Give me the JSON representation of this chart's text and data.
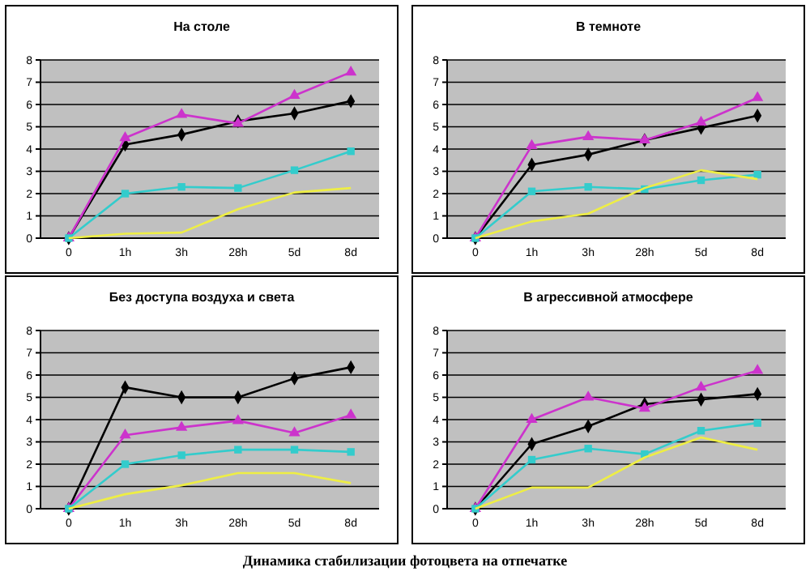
{
  "chart_data": [
    {
      "type": "line",
      "title": "На столе",
      "categories": [
        "0",
        "1h",
        "3h",
        "28h",
        "5d",
        "8d"
      ],
      "ylim": [
        0,
        8
      ],
      "yticks": [
        0,
        1,
        2,
        3,
        4,
        5,
        6,
        7,
        8
      ],
      "grid": "y",
      "series": [
        {
          "color": "#000000",
          "marker": "diamond",
          "values": [
            0,
            4.2,
            4.65,
            5.25,
            5.6,
            6.15
          ]
        },
        {
          "color": "#cc33cc",
          "marker": "triangle",
          "values": [
            0,
            4.5,
            5.55,
            5.15,
            6.4,
            7.45
          ]
        },
        {
          "color": "#33cccc",
          "marker": "square",
          "values": [
            0,
            2.0,
            2.3,
            2.25,
            3.05,
            3.9
          ]
        },
        {
          "color": "#eeee44",
          "marker": "none",
          "values": [
            0,
            0.2,
            0.25,
            1.3,
            2.05,
            2.25
          ]
        }
      ]
    },
    {
      "type": "line",
      "title": "В темноте",
      "categories": [
        "0",
        "1h",
        "3h",
        "28h",
        "5d",
        "8d"
      ],
      "ylim": [
        0,
        8
      ],
      "yticks": [
        0,
        1,
        2,
        3,
        4,
        5,
        6,
        7,
        8
      ],
      "grid": "y",
      "series": [
        {
          "color": "#000000",
          "marker": "diamond",
          "values": [
            0,
            3.3,
            3.75,
            4.4,
            4.95,
            5.5
          ]
        },
        {
          "color": "#cc33cc",
          "marker": "triangle",
          "values": [
            0,
            4.15,
            4.55,
            4.4,
            5.2,
            6.3
          ]
        },
        {
          "color": "#33cccc",
          "marker": "square",
          "values": [
            0,
            2.1,
            2.3,
            2.2,
            2.6,
            2.85
          ]
        },
        {
          "color": "#eeee44",
          "marker": "none",
          "values": [
            0,
            0.75,
            1.1,
            2.25,
            3.05,
            2.65
          ]
        }
      ]
    },
    {
      "type": "line",
      "title": "Без доступа воздуха и света",
      "categories": [
        "0",
        "1h",
        "3h",
        "28h",
        "5d",
        "8d"
      ],
      "ylim": [
        0,
        8
      ],
      "yticks": [
        0,
        1,
        2,
        3,
        4,
        5,
        6,
        7,
        8
      ],
      "grid": "y",
      "series": [
        {
          "color": "#000000",
          "marker": "diamond",
          "values": [
            0,
            5.45,
            5.0,
            5.0,
            5.85,
            6.35
          ]
        },
        {
          "color": "#cc33cc",
          "marker": "triangle",
          "values": [
            0,
            3.3,
            3.65,
            3.95,
            3.4,
            4.2
          ]
        },
        {
          "color": "#33cccc",
          "marker": "square",
          "values": [
            0,
            2.0,
            2.4,
            2.65,
            2.65,
            2.55
          ]
        },
        {
          "color": "#eeee44",
          "marker": "none",
          "values": [
            0,
            0.65,
            1.05,
            1.6,
            1.6,
            1.15
          ]
        }
      ]
    },
    {
      "type": "line",
      "title": "В агрессивной атмосфере",
      "categories": [
        "0",
        "1h",
        "3h",
        "28h",
        "5d",
        "8d"
      ],
      "ylim": [
        0,
        8
      ],
      "yticks": [
        0,
        1,
        2,
        3,
        4,
        5,
        6,
        7,
        8
      ],
      "grid": "y",
      "annotations": [
        "Динамика стабилизации фотоцвета на отпечатке"
      ],
      "series": [
        {
          "color": "#000000",
          "marker": "diamond",
          "values": [
            0,
            2.9,
            3.7,
            4.7,
            4.9,
            5.15
          ]
        },
        {
          "color": "#cc33cc",
          "marker": "triangle",
          "values": [
            0,
            4.0,
            5.0,
            4.5,
            5.45,
            6.2
          ]
        },
        {
          "color": "#33cccc",
          "marker": "square",
          "values": [
            0,
            2.2,
            2.7,
            2.45,
            3.5,
            3.85
          ]
        },
        {
          "color": "#eeee44",
          "marker": "none",
          "values": [
            0,
            0.95,
            0.95,
            2.3,
            3.2,
            2.65
          ]
        }
      ]
    }
  ]
}
